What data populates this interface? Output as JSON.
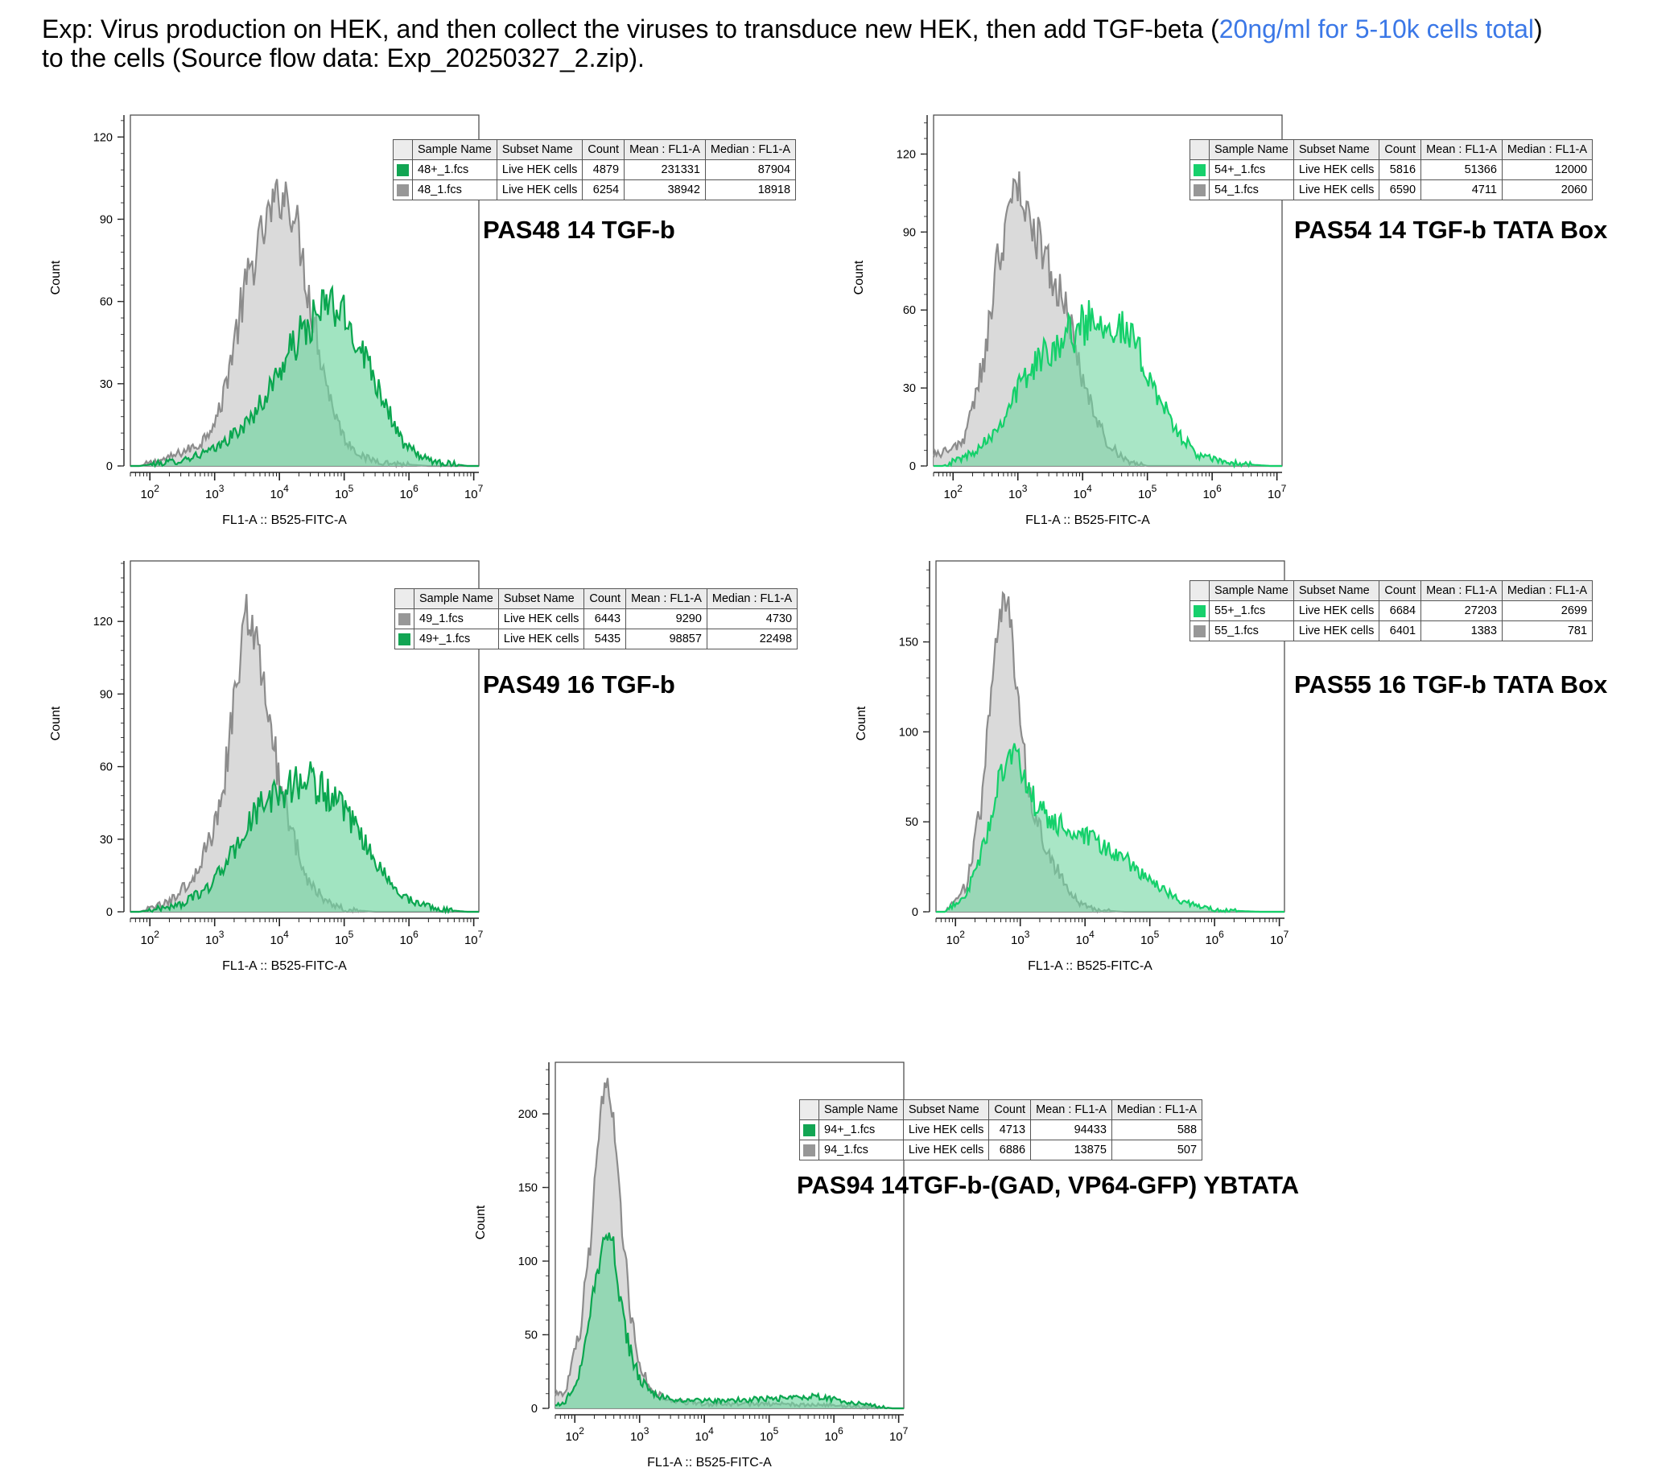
{
  "header": {
    "line1_before": "Exp: Virus production on HEK, and then collect the viruses to transduce new HEK, then add TGF-beta (",
    "highlight": "20ng/ml for 5-10k cells total",
    "line1_after": ")",
    "line2": "to the cells (Source flow data: Exp_20250327_2.zip)."
  },
  "colors": {
    "grey_fill": "#d3d3d3",
    "grey_line": "#8c8c8c",
    "green_line": "#0aa64f",
    "green_line_bright": "#14d06a",
    "green_fill": "#6fd6a0",
    "swatch_green": "#12a553",
    "swatch_green_bright": "#17d06c",
    "swatch_grey": "#979797"
  },
  "table_headers": [
    "Sample Name",
    "Subset Name",
    "Count",
    "Mean : FL1-A",
    "Median : FL1-A"
  ],
  "chart_data": [
    {
      "type": "area",
      "title": "PAS48 14 TGF-b",
      "xlabel": "FL1-A :: B525-FITC-A",
      "ylabel": "Count",
      "x_scale": "log",
      "xlim": [
        50,
        12000000
      ],
      "x_ticks": [
        100,
        1000,
        10000,
        100000,
        1000000,
        10000000
      ],
      "ylim": [
        0,
        128
      ],
      "y_ticks": [
        0,
        30,
        60,
        90,
        120
      ],
      "grid": false,
      "legend_placement": "table top-right",
      "table_rows": [
        {
          "sample": "48+_1.fcs",
          "subset": "Live HEK cells",
          "count": "4879",
          "mean": "231331",
          "median": "87904",
          "color": "swatch_green"
        },
        {
          "sample": "48_1.fcs",
          "subset": "Live HEK cells",
          "count": "6254",
          "mean": "38942",
          "median": "18918",
          "color": "swatch_grey"
        }
      ],
      "series": [
        {
          "name": "48_1.fcs",
          "style": "grey",
          "x": [
            70,
            200,
            600,
            1200,
            2000,
            3000,
            5000,
            8000,
            12000,
            18000,
            25000,
            40000,
            60000,
            100000,
            200000,
            500000,
            2000000
          ],
          "y": [
            0,
            3,
            8,
            20,
            45,
            65,
            82,
            95,
            100,
            90,
            70,
            45,
            25,
            10,
            3,
            1,
            0
          ]
        },
        {
          "name": "48+_1.fcs",
          "style": "green",
          "x": [
            70,
            300,
            1000,
            3000,
            6000,
            10000,
            20000,
            40000,
            60000,
            100000,
            200000,
            400000,
            800000,
            2000000,
            8000000
          ],
          "y": [
            0,
            2,
            6,
            15,
            25,
            35,
            47,
            55,
            60,
            54,
            42,
            25,
            8,
            2,
            0
          ]
        }
      ]
    },
    {
      "type": "area",
      "title": "PAS54 14 TGF-b TATA Box",
      "xlabel": "FL1-A :: B525-FITC-A",
      "ylabel": "Count",
      "x_scale": "log",
      "xlim": [
        50,
        12000000
      ],
      "x_ticks": [
        100,
        1000,
        10000,
        100000,
        1000000,
        10000000
      ],
      "ylim": [
        0,
        135
      ],
      "y_ticks": [
        0,
        30,
        60,
        90,
        120
      ],
      "grid": false,
      "legend_placement": "table top-right",
      "table_rows": [
        {
          "sample": "54+_1.fcs",
          "subset": "Live HEK cells",
          "count": "5816",
          "mean": "51366",
          "median": "12000",
          "color": "swatch_green_bright"
        },
        {
          "sample": "54_1.fcs",
          "subset": "Live HEK cells",
          "count": "6590",
          "mean": "4711",
          "median": "2060",
          "color": "swatch_grey"
        }
      ],
      "series": [
        {
          "name": "54_1.fcs",
          "style": "grey",
          "x": [
            70,
            150,
            300,
            500,
            800,
            1000,
            1500,
            2500,
            4000,
            6000,
            10000,
            15000,
            25000,
            50000,
            100000
          ],
          "y": [
            5,
            10,
            40,
            80,
            100,
            110,
            95,
            82,
            70,
            55,
            35,
            20,
            8,
            2,
            0
          ]
        },
        {
          "name": "54+_1.fcs",
          "style": "green_bright",
          "x": [
            70,
            200,
            500,
            1000,
            2000,
            4000,
            8000,
            15000,
            30000,
            60000,
            120000,
            250000,
            600000,
            2000000,
            8000000
          ],
          "y": [
            0,
            5,
            15,
            30,
            40,
            48,
            52,
            58,
            55,
            48,
            32,
            15,
            4,
            1,
            0
          ]
        }
      ]
    },
    {
      "type": "area",
      "title": "PAS49 16 TGF-b",
      "xlabel": "FL1-A :: B525-FITC-A",
      "ylabel": "Count",
      "x_scale": "log",
      "xlim": [
        50,
        12000000
      ],
      "x_ticks": [
        100,
        1000,
        10000,
        100000,
        1000000,
        10000000
      ],
      "ylim": [
        0,
        145
      ],
      "y_ticks": [
        0,
        30,
        60,
        90,
        120
      ],
      "grid": false,
      "legend_placement": "table top-right",
      "table_rows": [
        {
          "sample": "49_1.fcs",
          "subset": "Live HEK cells",
          "count": "6443",
          "mean": "9290",
          "median": "4730",
          "color": "swatch_grey"
        },
        {
          "sample": "49+_1.fcs",
          "subset": "Live HEK cells",
          "count": "5435",
          "mean": "98857",
          "median": "22498",
          "color": "swatch_green"
        }
      ],
      "series": [
        {
          "name": "49_1.fcs",
          "style": "grey",
          "x": [
            70,
            200,
            500,
            1000,
            1500,
            2200,
            3000,
            4500,
            7000,
            10000,
            15000,
            25000,
            50000,
            100000,
            300000
          ],
          "y": [
            0,
            4,
            15,
            35,
            60,
            95,
            125,
            110,
            80,
            55,
            35,
            15,
            5,
            1,
            0
          ]
        },
        {
          "name": "49+_1.fcs",
          "style": "green",
          "x": [
            70,
            300,
            800,
            2000,
            4000,
            8000,
            15000,
            30000,
            60000,
            120000,
            250000,
            500000,
            1000000,
            3000000,
            8000000
          ],
          "y": [
            0,
            3,
            10,
            25,
            40,
            48,
            52,
            55,
            48,
            38,
            25,
            12,
            5,
            1,
            0
          ]
        }
      ]
    },
    {
      "type": "area",
      "title": "PAS55 16 TGF-b TATA Box",
      "xlabel": "FL1-A :: B525-FITC-A",
      "ylabel": "Count",
      "x_scale": "log",
      "xlim": [
        50,
        12000000
      ],
      "x_ticks": [
        100,
        1000,
        10000,
        100000,
        1000000,
        10000000
      ],
      "ylim": [
        0,
        195
      ],
      "y_ticks": [
        0,
        50,
        100,
        150
      ],
      "grid": false,
      "legend_placement": "table top-right",
      "table_rows": [
        {
          "sample": "55+_1.fcs",
          "subset": "Live HEK cells",
          "count": "6684",
          "mean": "27203",
          "median": "2699",
          "color": "swatch_green_bright"
        },
        {
          "sample": "55_1.fcs",
          "subset": "Live HEK cells",
          "count": "6401",
          "mean": "1383",
          "median": "781",
          "color": "swatch_grey"
        }
      ],
      "series": [
        {
          "name": "55_1.fcs",
          "style": "grey",
          "x": [
            70,
            150,
            250,
            400,
            550,
            700,
            900,
            1200,
            1800,
            3000,
            5000,
            8000,
            15000,
            40000
          ],
          "y": [
            0,
            15,
            60,
            140,
            175,
            165,
            120,
            80,
            50,
            30,
            15,
            5,
            1,
            0
          ]
        },
        {
          "name": "55+_1.fcs",
          "style": "green_bright",
          "x": [
            70,
            150,
            300,
            500,
            800,
            1200,
            2000,
            4000,
            8000,
            15000,
            30000,
            60000,
            120000,
            300000,
            1000000,
            5000000
          ],
          "y": [
            0,
            10,
            40,
            80,
            90,
            70,
            55,
            48,
            42,
            38,
            32,
            25,
            15,
            6,
            1,
            0
          ]
        }
      ]
    },
    {
      "type": "area",
      "title": "PAS94 14TGF-b-(GAD, VP64-GFP) YBTATA",
      "xlabel": "FL1-A :: B525-FITC-A",
      "ylabel": "Count",
      "x_scale": "log",
      "xlim": [
        50,
        12000000
      ],
      "x_ticks": [
        100,
        1000,
        10000,
        100000,
        1000000,
        10000000
      ],
      "ylim": [
        0,
        235
      ],
      "y_ticks": [
        0,
        50,
        100,
        150,
        200
      ],
      "grid": false,
      "legend_placement": "table top-right",
      "table_rows": [
        {
          "sample": "94+_1.fcs",
          "subset": "Live HEK cells",
          "count": "4713",
          "mean": "94433",
          "median": "588",
          "color": "swatch_green"
        },
        {
          "sample": "94_1.fcs",
          "subset": "Live HEK cells",
          "count": "6886",
          "mean": "13875",
          "median": "507",
          "color": "swatch_grey"
        }
      ],
      "series": [
        {
          "name": "94_1.fcs",
          "style": "grey",
          "x": [
            70,
            120,
            180,
            250,
            320,
            400,
            500,
            700,
            1000,
            1500,
            3000,
            10000,
            100000,
            1000000,
            8000000
          ],
          "y": [
            10,
            50,
            120,
            200,
            225,
            195,
            140,
            70,
            30,
            12,
            5,
            3,
            3,
            2,
            0
          ]
        },
        {
          "name": "94+_1.fcs",
          "style": "green",
          "x": [
            70,
            120,
            180,
            250,
            320,
            400,
            500,
            700,
            1000,
            1500,
            3000,
            10000,
            50000,
            200000,
            500000,
            2000000,
            8000000
          ],
          "y": [
            3,
            25,
            70,
            105,
            120,
            110,
            75,
            40,
            20,
            10,
            6,
            5,
            6,
            7,
            8,
            4,
            0
          ]
        }
      ]
    }
  ]
}
